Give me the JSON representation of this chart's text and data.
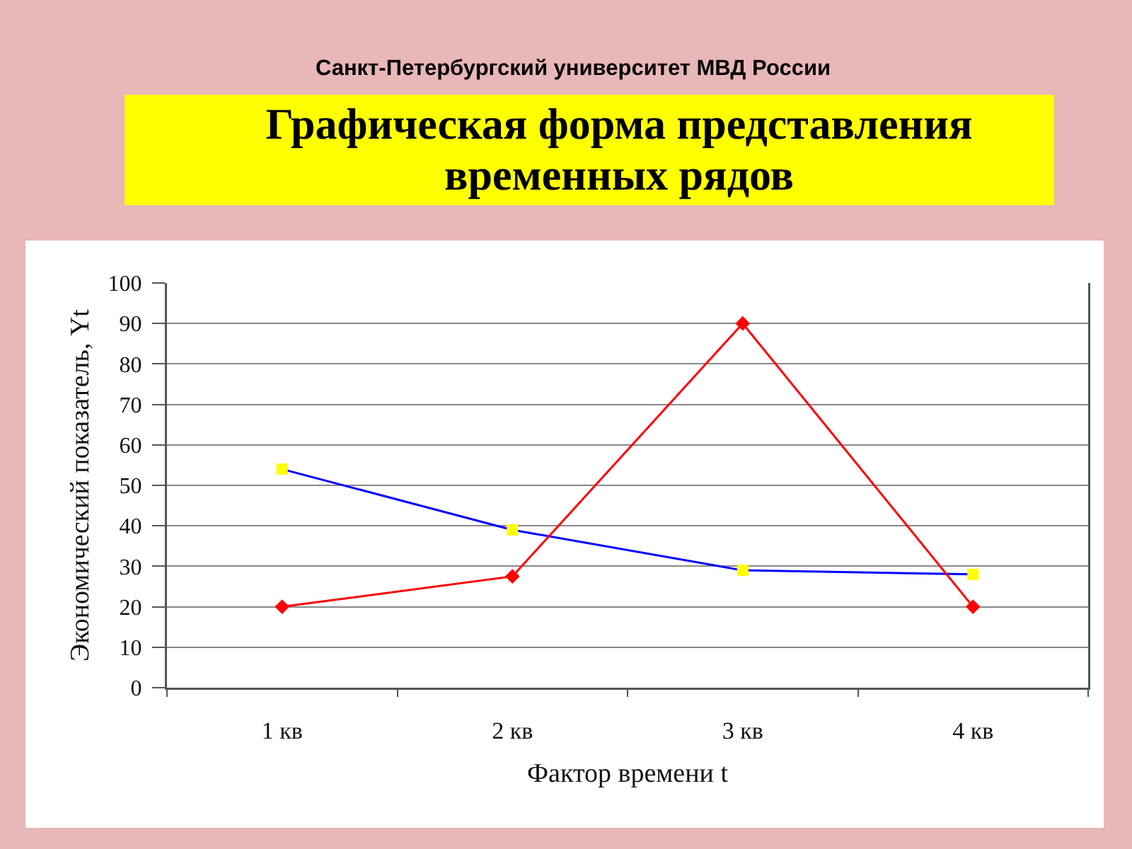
{
  "chart_data": {
    "type": "line",
    "title": "Графическая форма представления\nвременных рядов",
    "annotations": [
      "Санкт-Петербургский университет МВД России"
    ],
    "xlabel": "Фактор времени t",
    "ylabel": "Экономический показатель, Yt",
    "categories": [
      "1 кв",
      "2 кв",
      "3 кв",
      "4 кв"
    ],
    "series": [
      {
        "color": "#0000ff",
        "colors": [
          "#ffff00",
          "#ffff00",
          "#ffff00",
          "#ffff00"
        ],
        "marker": "square",
        "values": [
          54,
          39,
          29,
          28
        ]
      },
      {
        "color": "#ff0000",
        "marker": "diamond",
        "values": [
          20,
          27.5,
          90,
          20
        ]
      }
    ],
    "ylim": [
      0,
      100
    ],
    "yticks": [
      0,
      10,
      20,
      30,
      40,
      50,
      60,
      70,
      80,
      90,
      100
    ],
    "grid": "y",
    "line_style": "solid"
  }
}
